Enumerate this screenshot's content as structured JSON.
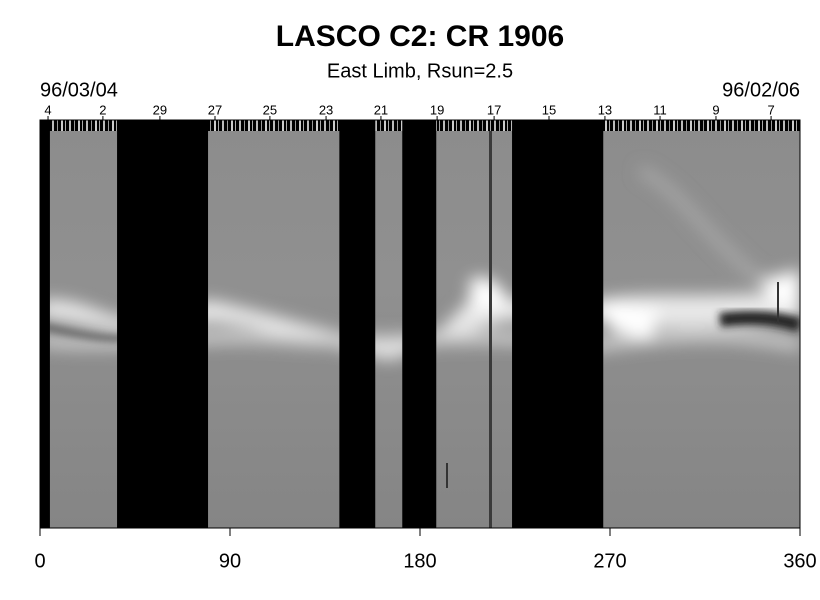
{
  "chart_data": {
    "type": "synoptic",
    "title": "LASCO C2: CR 1906",
    "subtitle": "East Limb, Rsun=2.5",
    "start_date": "96/03/04",
    "end_date": "96/02/06",
    "xlim": [
      0,
      360
    ],
    "xticks": [
      0,
      90,
      180,
      270,
      360
    ],
    "x2ticks": [
      {
        "value": 3.8,
        "label": "4"
      },
      {
        "value": 29.8,
        "label": "2"
      },
      {
        "value": 56.8,
        "label": "29"
      },
      {
        "value": 82.9,
        "label": "27"
      },
      {
        "value": 108.9,
        "label": "25"
      },
      {
        "value": 135.5,
        "label": "23"
      },
      {
        "value": 161.5,
        "label": "21"
      },
      {
        "value": 188.1,
        "label": "19"
      },
      {
        "value": 215.1,
        "label": "17"
      },
      {
        "value": 241.1,
        "label": "15"
      },
      {
        "value": 267.6,
        "label": "13"
      },
      {
        "value": 293.7,
        "label": "11"
      },
      {
        "value": 320.2,
        "label": "9"
      },
      {
        "value": 346.3,
        "label": "7"
      }
    ],
    "data_gaps": [
      [
        0,
        4.7
      ],
      [
        36.5,
        79.6
      ],
      [
        141.8,
        158.8
      ],
      [
        171.6,
        187.7
      ],
      [
        223.6,
        266.8
      ]
    ]
  }
}
